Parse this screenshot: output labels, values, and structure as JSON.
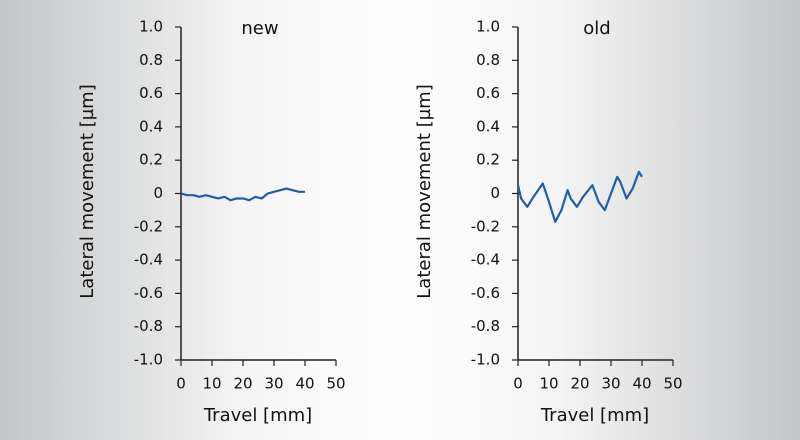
{
  "chart_data": [
    {
      "type": "line",
      "title": "new",
      "x_label": "Travel [mm]",
      "y_label": "Lateral movement [µm]",
      "x": [
        0,
        2,
        4,
        6,
        8,
        10,
        12,
        14,
        16,
        18,
        20,
        22,
        24,
        26,
        28,
        30,
        32,
        34,
        36,
        38,
        40
      ],
      "series": [
        {
          "color": "#1f5ea8",
          "values": [
            0.0,
            -0.01,
            -0.01,
            -0.02,
            -0.01,
            -0.02,
            -0.03,
            -0.02,
            -0.04,
            -0.03,
            -0.03,
            -0.04,
            -0.02,
            -0.03,
            0.0,
            0.01,
            0.02,
            0.03,
            0.02,
            0.01,
            0.01
          ]
        }
      ],
      "xlim": [
        0,
        50
      ],
      "xticks": [
        0,
        10,
        20,
        30,
        40,
        50
      ],
      "ylim": [
        -1,
        1
      ],
      "yticks": [
        {
          "value": -1,
          "label": "-1.0"
        },
        -0.8,
        -0.6,
        -0.4,
        -0.2,
        0,
        0.2,
        0.4,
        0.6,
        0.8,
        {
          "value": 1,
          "label": "1.0"
        }
      ]
    },
    {
      "type": "line",
      "title": "old",
      "x_label": "Travel [mm]",
      "y_label": "Lateral movement [µm]",
      "x": [
        0,
        1,
        3,
        5,
        8,
        10,
        12,
        14,
        16,
        17,
        19,
        21,
        24,
        26,
        28,
        30,
        32,
        33,
        35,
        37,
        39,
        40
      ],
      "series": [
        {
          "color": "#1f5ea8",
          "values": [
            0.05,
            -0.03,
            -0.08,
            -0.02,
            0.06,
            -0.05,
            -0.17,
            -0.1,
            0.02,
            -0.03,
            -0.08,
            -0.02,
            0.05,
            -0.05,
            -0.1,
            0.0,
            0.1,
            0.07,
            -0.03,
            0.03,
            0.13,
            0.1
          ]
        }
      ],
      "xlim": [
        0,
        50
      ],
      "xticks": [
        0,
        10,
        20,
        30,
        40,
        50
      ],
      "ylim": [
        -1,
        1
      ],
      "yticks": [
        {
          "value": -1,
          "label": "-1.0"
        },
        -0.8,
        -0.6,
        -0.4,
        -0.2,
        0,
        0.2,
        0.4,
        0.6,
        0.8,
        {
          "value": 1,
          "label": "1.0"
        }
      ]
    }
  ]
}
